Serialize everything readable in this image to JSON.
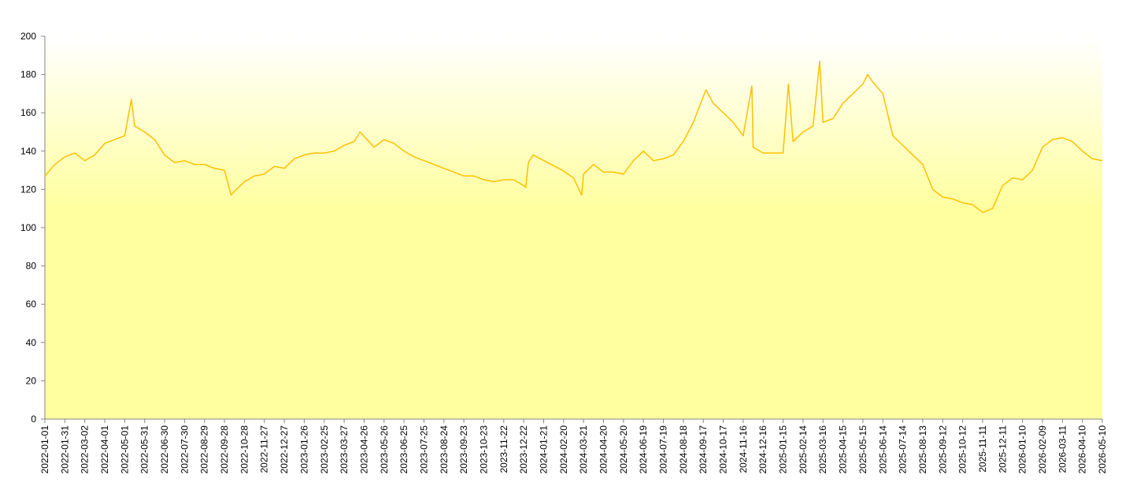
{
  "chart_data": {
    "type": "line",
    "color": "#ffc000",
    "x": [
      "2022-01-01",
      "2022-01-16",
      "2022-01-31",
      "2022-02-15",
      "2022-03-02",
      "2022-03-17",
      "2022-04-01",
      "2022-04-16",
      "2022-05-01",
      "2022-05-11",
      "2022-05-16",
      "2022-05-31",
      "2022-06-15",
      "2022-06-30",
      "2022-07-15",
      "2022-07-30",
      "2022-08-14",
      "2022-08-29",
      "2022-09-13",
      "2022-09-28",
      "2022-10-08",
      "2022-10-13",
      "2022-10-28",
      "2022-11-12",
      "2022-11-27",
      "2022-12-12",
      "2022-12-27",
      "2023-01-11",
      "2023-01-26",
      "2023-02-10",
      "2023-02-25",
      "2023-03-12",
      "2023-03-27",
      "2023-04-11",
      "2023-04-20",
      "2023-05-11",
      "2023-05-26",
      "2023-06-10",
      "2023-06-25",
      "2023-07-10",
      "2023-07-25",
      "2023-08-09",
      "2023-08-24",
      "2023-09-08",
      "2023-09-23",
      "2023-10-08",
      "2023-10-23",
      "2023-11-07",
      "2023-11-22",
      "2023-12-07",
      "2023-12-22",
      "2023-12-25",
      "2023-12-29",
      "2024-01-05",
      "2024-02-18",
      "2024-03-06",
      "2024-03-18",
      "2024-03-21",
      "2024-04-05",
      "2024-04-20",
      "2024-05-05",
      "2024-05-20",
      "2024-06-04",
      "2024-06-19",
      "2024-07-04",
      "2024-07-19",
      "2024-08-03",
      "2024-08-18",
      "2024-09-02",
      "2024-09-21",
      "2024-10-02",
      "2024-10-17",
      "2024-11-01",
      "2024-11-16",
      "2024-11-29",
      "2024-12-01",
      "2024-12-16",
      "2024-12-31",
      "2025-01-15",
      "2025-01-23",
      "2025-01-30",
      "2025-02-14",
      "2025-03-01",
      "2025-03-11",
      "2025-03-16",
      "2025-03-31",
      "2025-04-15",
      "2025-04-30",
      "2025-05-15",
      "2025-05-22",
      "2025-05-30",
      "2025-06-14",
      "2025-06-29",
      "2025-07-14",
      "2025-07-29",
      "2025-08-13",
      "2025-08-28",
      "2025-09-12",
      "2025-09-27",
      "2025-10-12",
      "2025-10-27",
      "2025-11-11",
      "2025-11-26",
      "2025-12-11",
      "2025-12-26",
      "2026-01-10",
      "2026-01-25",
      "2026-02-09",
      "2026-02-24",
      "2026-03-11",
      "2026-03-26",
      "2026-04-10",
      "2026-04-25",
      "2026-05-10"
    ],
    "values": [
      127,
      133,
      137,
      139,
      135,
      138,
      144,
      146,
      148,
      167,
      153,
      150,
      146,
      138,
      134,
      135,
      133,
      133,
      131,
      130,
      117,
      119,
      124,
      127,
      128,
      132,
      131,
      136,
      138,
      139,
      139,
      140,
      143,
      145,
      150,
      142,
      146,
      144,
      140,
      137,
      135,
      133,
      131,
      129,
      127,
      127,
      125,
      124,
      125,
      125,
      122,
      121,
      134,
      138,
      130,
      126,
      117,
      128,
      133,
      129,
      129,
      128,
      135,
      140,
      135,
      136,
      138,
      145,
      155,
      172,
      165,
      160,
      155,
      148,
      174,
      142,
      139,
      139,
      139,
      175,
      145,
      150,
      153,
      187,
      155,
      157,
      165,
      170,
      175,
      180,
      176,
      170,
      148,
      143,
      138,
      133,
      120,
      116,
      115,
      113,
      112,
      108,
      110,
      122,
      126,
      125,
      130,
      142,
      146,
      147,
      145,
      140,
      136,
      135
    ],
    "xlim": [
      "2022-01-01",
      "2026-05-10"
    ],
    "xticks": [
      "2022-01-01",
      "2022-01-31",
      "2022-03-02",
      "2022-04-01",
      "2022-05-01",
      "2022-05-31",
      "2022-06-30",
      "2022-07-30",
      "2022-08-29",
      "2022-09-28",
      "2022-10-28",
      "2022-11-27",
      "2022-12-27",
      "2023-01-26",
      "2023-02-25",
      "2023-03-27",
      "2023-04-26",
      "2023-05-26",
      "2023-06-25",
      "2023-07-25",
      "2023-08-24",
      "2023-09-23",
      "2023-10-23",
      "2023-11-22",
      "2023-12-22",
      "2024-01-21",
      "2024-02-20",
      "2024-03-21",
      "2024-04-20",
      "2024-05-20",
      "2024-06-19",
      "2024-07-19",
      "2024-08-18",
      "2024-09-17",
      "2024-10-17",
      "2024-11-16",
      "2024-12-16",
      "2025-01-15",
      "2025-02-14",
      "2025-03-16",
      "2025-04-15",
      "2025-05-15",
      "2025-06-14",
      "2025-07-14",
      "2025-08-13",
      "2025-09-12",
      "2025-10-12",
      "2025-11-11",
      "2025-12-11",
      "2026-01-10",
      "2026-02-09",
      "2026-03-11",
      "2026-04-10",
      "2026-05-10"
    ],
    "ylim": [
      0,
      200
    ],
    "yticks": [
      0,
      20,
      40,
      60,
      80,
      100,
      120,
      140,
      160,
      180,
      200
    ],
    "grid": false
  }
}
